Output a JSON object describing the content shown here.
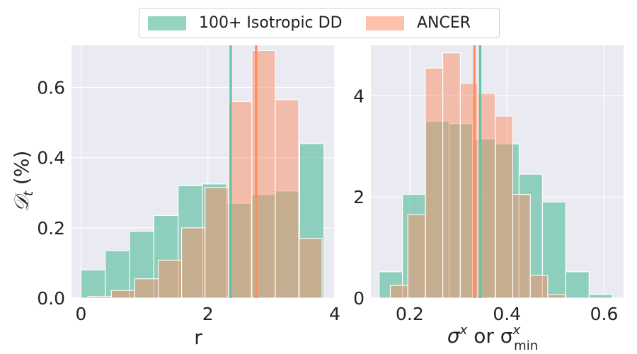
{
  "legend": {
    "entries": [
      {
        "label": "100+ Isotropic DD",
        "color": "#66c2a5"
      },
      {
        "label": "ANCER",
        "color": "#fc8d62"
      }
    ]
  },
  "chart_data": [
    {
      "type": "bar",
      "title": "",
      "xlabel": "r",
      "ylabel": "𝒟",
      "ylabel_sub": "t",
      "ylabel_suffix": " (%)",
      "xlim": [
        -0.15,
        4.0
      ],
      "ylim": [
        0.0,
        0.72
      ],
      "xticks": [
        0,
        2,
        4
      ],
      "yticks": [
        0.0,
        0.2,
        0.4,
        0.6
      ],
      "ytick_labels": [
        "0.0",
        "0.2",
        "0.4",
        "0.6"
      ],
      "series": [
        {
          "name": "100+ Isotropic DD",
          "bin_edges": [
            0.0,
            0.383,
            0.766,
            1.149,
            1.532,
            1.915,
            2.298,
            2.681,
            3.064,
            3.447,
            3.83
          ],
          "values": [
            0.08,
            0.135,
            0.19,
            0.235,
            0.32,
            0.325,
            0.27,
            0.295,
            0.305,
            0.44
          ]
        },
        {
          "name": "ANCER",
          "bin_edges": [
            0.11,
            0.479,
            0.848,
            1.217,
            1.586,
            1.955,
            2.324,
            2.693,
            3.062,
            3.431,
            3.8
          ],
          "values": [
            0.005,
            0.022,
            0.055,
            0.108,
            0.2,
            0.315,
            0.56,
            0.705,
            0.565,
            0.17
          ]
        }
      ],
      "vlines": [
        {
          "name": "100+ Isotropic DD mean",
          "x": 2.36
        },
        {
          "name": "ANCER mean",
          "x": 2.76
        }
      ]
    },
    {
      "type": "bar",
      "title": "",
      "xlabel": "σ",
      "xlabel_sup": "x",
      "xlabel_mid": " or σ",
      "xlabel_sup2": "x",
      "xlabel_sub2": "min",
      "ylabel": "",
      "xlim": [
        0.12,
        0.64
      ],
      "ylim": [
        0.0,
        5.0
      ],
      "xticks": [
        0.2,
        0.4,
        0.6
      ],
      "xtick_labels": [
        "0.2",
        "0.4",
        "0.6"
      ],
      "yticks": [
        0,
        2,
        4
      ],
      "series": [
        {
          "name": "100+ Isotropic DD",
          "bin_edges": [
            0.137,
            0.185,
            0.233,
            0.281,
            0.329,
            0.377,
            0.425,
            0.473,
            0.521,
            0.569,
            0.617
          ],
          "values": [
            0.52,
            2.05,
            3.5,
            3.45,
            3.15,
            3.05,
            2.45,
            1.9,
            0.52,
            0.07
          ]
        },
        {
          "name": "ANCER",
          "bin_edges": [
            0.16,
            0.196,
            0.232,
            0.268,
            0.304,
            0.34,
            0.376,
            0.412,
            0.448,
            0.484,
            0.52
          ],
          "values": [
            0.25,
            1.65,
            4.55,
            4.85,
            4.25,
            4.05,
            3.6,
            2.05,
            0.45,
            0.07
          ]
        }
      ],
      "vlines": [
        {
          "name": "ANCER mean",
          "x": 0.333
        },
        {
          "name": "100+ Isotropic DD mean",
          "x": 0.345
        }
      ]
    }
  ]
}
